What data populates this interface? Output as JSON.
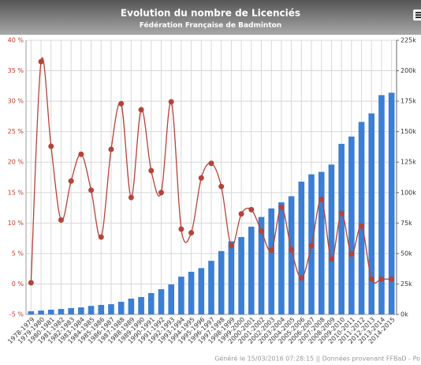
{
  "chart_data": {
    "type": "bar-line",
    "title": "Evolution du nombre de Licenciés",
    "subtitle": "Fédération Française de Badminton",
    "footer": "Généré le 15/03/2016 07:28:15 || Données provenant FFBaD - Po",
    "categories": [
      "1978-1979",
      "1979-1980",
      "1980-1981",
      "1981-1982",
      "1982-1983",
      "1983-1984",
      "1984-1985",
      "1985-1986",
      "1986-1987",
      "1987-1988",
      "1988-1989",
      "1989-1990",
      "1990-1991",
      "1991-1992",
      "1992-1993",
      "1993-1994",
      "1994-1995",
      "1995-1996",
      "1996-1997",
      "1997-1998",
      "1998-1999",
      "1999-2000",
      "2000-2001",
      "2001-2002",
      "2002-2003",
      "2003-2004",
      "2004-2005",
      "2005-2006",
      "2006-2007",
      "2007-2008",
      "2008-2009",
      "2009-2010",
      "2010-2011",
      "2011-2012",
      "2012-2013",
      "2013-2014",
      "2014-2015"
    ],
    "series": [
      {
        "type": "bar",
        "axis": "y2",
        "color": "#3a7fd5",
        "values": [
          2600,
          3200,
          3900,
          4500,
          5200,
          5800,
          7000,
          7800,
          8400,
          10400,
          13000,
          14300,
          17500,
          20700,
          24600,
          31000,
          35000,
          38000,
          44000,
          52000,
          60000,
          63500,
          72000,
          80000,
          87000,
          92000,
          97000,
          109000,
          115000,
          117000,
          123000,
          140000,
          146000,
          158000,
          165000,
          180000,
          182000
        ]
      },
      {
        "type": "line",
        "color": "#b5433a",
        "values": [
          0.2,
          36.5,
          22.6,
          10.5,
          16.9,
          21.3,
          15.4,
          7.7,
          22.1,
          29.6,
          14.2,
          28.6,
          18.6,
          15.0,
          29.9,
          9.0,
          8.4,
          17.4,
          19.8,
          16.0,
          6.3,
          11.5,
          12.2,
          8.7,
          5.5,
          12.6,
          5.6,
          1.0,
          6.3,
          13.9,
          4.1,
          11.6,
          4.9,
          9.5,
          0.8,
          0.8,
          0.8
        ]
      }
    ],
    "ylim": [
      -5,
      40
    ],
    "yticks": [
      {
        "value": -5,
        "label": "-5 %"
      },
      {
        "value": 0,
        "label": "0 %"
      },
      {
        "value": 5,
        "label": "5 %"
      },
      {
        "value": 10,
        "label": "10 %"
      },
      {
        "value": 15,
        "label": "15 %"
      },
      {
        "value": 20,
        "label": "20 %"
      },
      {
        "value": 25,
        "label": "25 %"
      },
      {
        "value": 30,
        "label": "30 %"
      },
      {
        "value": 35,
        "label": "35 %"
      },
      {
        "value": 40,
        "label": "40 %"
      }
    ],
    "y2lim": [
      0,
      225000
    ],
    "y2ticks": [
      {
        "value": 0,
        "label": "0k"
      },
      {
        "value": 25000,
        "label": "25k"
      },
      {
        "value": 50000,
        "label": "50k"
      },
      {
        "value": 75000,
        "label": "75k"
      },
      {
        "value": 100000,
        "label": "100k"
      },
      {
        "value": 125000,
        "label": "125k"
      },
      {
        "value": 150000,
        "label": "150k"
      },
      {
        "value": 175000,
        "label": "175k"
      },
      {
        "value": 200000,
        "label": "200k"
      },
      {
        "value": 225000,
        "label": "225k"
      }
    ],
    "grid": true
  }
}
